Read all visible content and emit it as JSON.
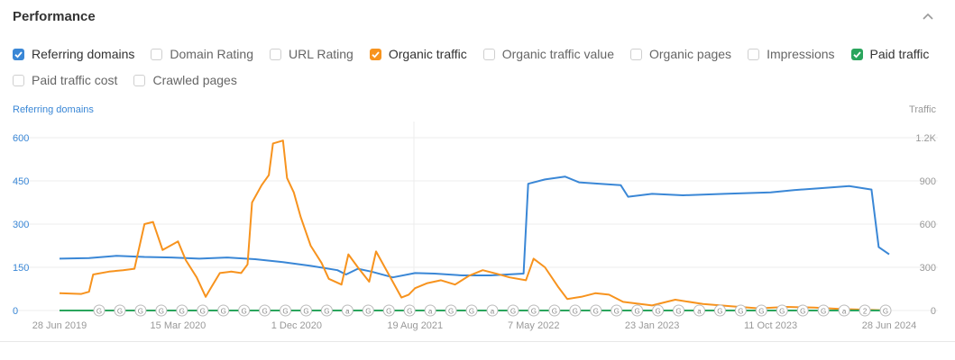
{
  "panel": {
    "title": "Performance"
  },
  "checkboxes": [
    [
      {
        "label": "Referring domains",
        "checked": true,
        "color": "#3a87d6"
      },
      {
        "label": "Domain Rating",
        "checked": false
      },
      {
        "label": "URL Rating",
        "checked": false
      },
      {
        "label": "Organic traffic",
        "checked": true,
        "color": "#f7931e"
      },
      {
        "label": "Organic traffic value",
        "checked": false
      },
      {
        "label": "Organic pages",
        "checked": false
      },
      {
        "label": "Impressions",
        "checked": false
      },
      {
        "label": "Paid traffic",
        "checked": true,
        "color": "#2aa55d"
      }
    ],
    [
      {
        "label": "Paid traffic cost",
        "checked": false
      },
      {
        "label": "Crawled pages",
        "checked": false
      }
    ]
  ],
  "chart_data": {
    "type": "line",
    "left_axis_label": "Referring domains",
    "right_axis_label": "Traffic",
    "left_ticks": [
      "600",
      "450",
      "300",
      "150",
      "0"
    ],
    "right_ticks": [
      "1.2K",
      "900",
      "600",
      "300",
      "0"
    ],
    "ylim_left": [
      0,
      600
    ],
    "ylim_right": [
      0,
      1200
    ],
    "x_labels": [
      "28 Jun 2019",
      "15 Mar 2020",
      "1 Dec 2020",
      "19 Aug 2021",
      "7 May 2022",
      "23 Jan 2023",
      "11 Oct 2023",
      "28 Jun 2024"
    ],
    "x_range": [
      "2019-06-28",
      "2024-06-28"
    ],
    "grid": true,
    "series": [
      {
        "name": "Referring domains",
        "axis": "left",
        "color": "#3a87d6",
        "points": [
          [
            "2019-06-28",
            180
          ],
          [
            "2019-09-01",
            182
          ],
          [
            "2019-11-01",
            190
          ],
          [
            "2020-01-01",
            186
          ],
          [
            "2020-03-01",
            184
          ],
          [
            "2020-05-01",
            180
          ],
          [
            "2020-07-01",
            184
          ],
          [
            "2020-09-01",
            178
          ],
          [
            "2020-11-01",
            168
          ],
          [
            "2021-01-01",
            155
          ],
          [
            "2021-03-01",
            140
          ],
          [
            "2021-03-20",
            125
          ],
          [
            "2021-04-15",
            145
          ],
          [
            "2021-05-15",
            135
          ],
          [
            "2021-07-01",
            115
          ],
          [
            "2021-08-19",
            130
          ],
          [
            "2021-10-01",
            128
          ],
          [
            "2021-12-01",
            122
          ],
          [
            "2022-02-01",
            122
          ],
          [
            "2022-04-15",
            128
          ],
          [
            "2022-04-25",
            440
          ],
          [
            "2022-06-01",
            455
          ],
          [
            "2022-07-15",
            465
          ],
          [
            "2022-08-15",
            445
          ],
          [
            "2022-10-01",
            440
          ],
          [
            "2022-11-15",
            435
          ],
          [
            "2022-12-01",
            395
          ],
          [
            "2023-01-23",
            405
          ],
          [
            "2023-04-01",
            400
          ],
          [
            "2023-07-01",
            405
          ],
          [
            "2023-10-11",
            410
          ],
          [
            "2023-12-01",
            418
          ],
          [
            "2024-02-01",
            425
          ],
          [
            "2024-04-01",
            432
          ],
          [
            "2024-05-20",
            420
          ],
          [
            "2024-06-05",
            220
          ],
          [
            "2024-06-28",
            195
          ]
        ]
      },
      {
        "name": "Organic traffic",
        "axis": "right",
        "color": "#f7931e",
        "points": [
          [
            "2019-06-28",
            120
          ],
          [
            "2019-08-15",
            115
          ],
          [
            "2019-09-01",
            130
          ],
          [
            "2019-09-10",
            250
          ],
          [
            "2019-10-15",
            270
          ],
          [
            "2019-11-15",
            280
          ],
          [
            "2019-12-10",
            290
          ],
          [
            "2020-01-01",
            600
          ],
          [
            "2020-01-20",
            615
          ],
          [
            "2020-02-10",
            420
          ],
          [
            "2020-03-15",
            480
          ],
          [
            "2020-04-01",
            350
          ],
          [
            "2020-04-25",
            230
          ],
          [
            "2020-05-15",
            95
          ],
          [
            "2020-05-25",
            150
          ],
          [
            "2020-06-15",
            260
          ],
          [
            "2020-07-10",
            270
          ],
          [
            "2020-08-01",
            260
          ],
          [
            "2020-08-15",
            320
          ],
          [
            "2020-08-25",
            750
          ],
          [
            "2020-09-15",
            870
          ],
          [
            "2020-10-01",
            940
          ],
          [
            "2020-10-10",
            1160
          ],
          [
            "2020-11-01",
            1180
          ],
          [
            "2020-11-10",
            920
          ],
          [
            "2020-11-25",
            820
          ],
          [
            "2020-12-10",
            650
          ],
          [
            "2021-01-01",
            450
          ],
          [
            "2021-01-25",
            330
          ],
          [
            "2021-02-10",
            220
          ],
          [
            "2021-03-10",
            180
          ],
          [
            "2021-03-25",
            390
          ],
          [
            "2021-04-15",
            300
          ],
          [
            "2021-05-10",
            200
          ],
          [
            "2021-05-25",
            410
          ],
          [
            "2021-06-15",
            290
          ],
          [
            "2021-07-20",
            90
          ],
          [
            "2021-08-05",
            110
          ],
          [
            "2021-08-19",
            155
          ],
          [
            "2021-09-15",
            190
          ],
          [
            "2021-10-15",
            210
          ],
          [
            "2021-11-15",
            180
          ],
          [
            "2021-12-15",
            240
          ],
          [
            "2022-01-15",
            280
          ],
          [
            "2022-02-15",
            255
          ],
          [
            "2022-03-15",
            230
          ],
          [
            "2022-04-20",
            210
          ],
          [
            "2022-05-07",
            360
          ],
          [
            "2022-06-01",
            300
          ],
          [
            "2022-07-01",
            160
          ],
          [
            "2022-07-20",
            80
          ],
          [
            "2022-08-20",
            95
          ],
          [
            "2022-09-20",
            120
          ],
          [
            "2022-10-20",
            110
          ],
          [
            "2022-11-20",
            60
          ],
          [
            "2023-01-23",
            35
          ],
          [
            "2023-03-15",
            75
          ],
          [
            "2023-05-15",
            45
          ],
          [
            "2023-07-15",
            30
          ],
          [
            "2023-09-15",
            15
          ],
          [
            "2023-11-15",
            25
          ],
          [
            "2024-01-15",
            20
          ],
          [
            "2024-03-15",
            10
          ],
          [
            "2024-05-15",
            5
          ],
          [
            "2024-06-28",
            0
          ]
        ]
      },
      {
        "name": "Paid traffic",
        "axis": "right",
        "color": "#2aa55d",
        "points": [
          [
            "2019-06-28",
            0
          ],
          [
            "2024-06-28",
            0
          ]
        ]
      }
    ],
    "annotations": [
      "G",
      "G",
      "G",
      "G",
      "G",
      "G",
      "G",
      "G",
      "G",
      "G",
      "G",
      "G",
      "a",
      "G",
      "G",
      "G",
      "a",
      "G",
      "G",
      "a",
      "G",
      "G",
      "G",
      "G",
      "G",
      "G",
      "G",
      "G",
      "G",
      "a",
      "G",
      "G",
      "G",
      "G",
      "G",
      "G",
      "a",
      "2",
      "G"
    ]
  }
}
